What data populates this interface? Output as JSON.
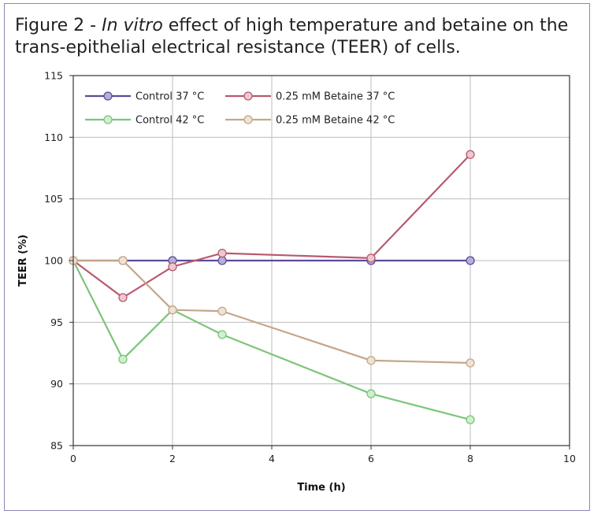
{
  "figure": {
    "title_prefix": "Figure 2 - ",
    "title_italic": "In vitro",
    "title_line1_rest": " effect of high temperature and betaine on the",
    "title_line2": "trans-epithelial electrical resistance (TEER) of cells."
  },
  "chart_data": {
    "type": "line",
    "title": "Figure 2 - In vitro effect of high temperature and betaine on the trans-epithelial electrical resistance (TEER) of cells.",
    "xlabel": "Time (h)",
    "ylabel": "TEER (%)",
    "xlim": [
      0,
      10
    ],
    "ylim": [
      85,
      115
    ],
    "xticks": [
      0,
      2,
      4,
      6,
      8,
      10
    ],
    "yticks": [
      85,
      90,
      95,
      100,
      105,
      110,
      115
    ],
    "grid": true,
    "legend_position": "top-left",
    "x": [
      0,
      1,
      2,
      3,
      6,
      8
    ],
    "series": [
      {
        "name": "Control 37 °C",
        "color": "#5b4b9b",
        "marker_fill": "#b4b0d8",
        "values": [
          100,
          100,
          100,
          100,
          100,
          100
        ]
      },
      {
        "name": "0.25 mM Betaine 37 °C",
        "color": "#b85a6e",
        "marker_fill": "#eec8d0",
        "values": [
          100,
          97,
          99.5,
          100.6,
          100.2,
          108.6
        ]
      },
      {
        "name": "Control 42 °C",
        "color": "#7cc57a",
        "marker_fill": "#d2eed0",
        "values": [
          100,
          92,
          96,
          94,
          89.2,
          87.1
        ]
      },
      {
        "name": "0.25 mM Betaine 42 °C",
        "color": "#c2a68a",
        "marker_fill": "#efe2d4",
        "values": [
          100,
          100,
          96,
          95.9,
          91.9,
          91.7
        ]
      }
    ]
  }
}
